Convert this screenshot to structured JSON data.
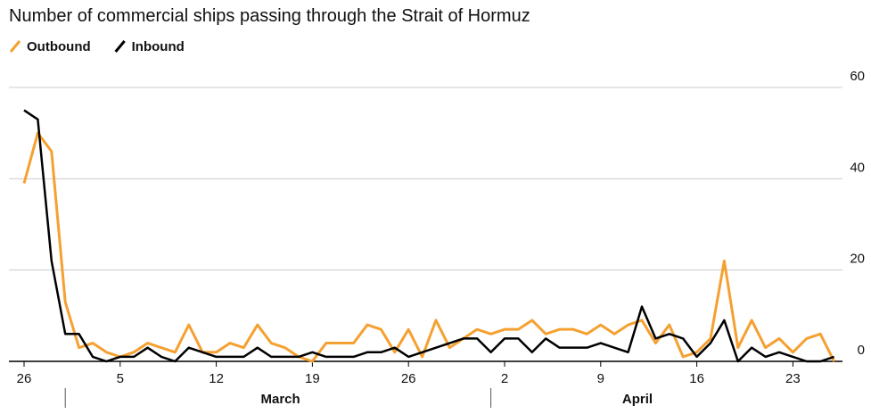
{
  "chart_data": {
    "type": "line",
    "title": "Number of commercial ships passing through the Strait of Hormuz",
    "categories": [
      "26",
      null,
      null,
      null,
      null,
      null,
      null,
      "5",
      null,
      null,
      null,
      null,
      null,
      null,
      "12",
      null,
      null,
      null,
      null,
      null,
      null,
      "19",
      null,
      null,
      null,
      null,
      null,
      null,
      "26",
      null,
      null,
      null,
      null,
      null,
      null,
      "2",
      null,
      null,
      null,
      null,
      null,
      null,
      "9",
      null,
      null,
      null,
      null,
      null,
      null,
      "16",
      null,
      null,
      null,
      null,
      null,
      null,
      "23",
      null,
      null,
      null
    ],
    "months": [
      "March",
      "April"
    ],
    "series": [
      {
        "name": "Outbound",
        "color": "#f5a031",
        "values": [
          39,
          50,
          46,
          13,
          3,
          4,
          2,
          1,
          2,
          4,
          3,
          2,
          8,
          2,
          2,
          4,
          3,
          8,
          4,
          3,
          1,
          0,
          4,
          4,
          4,
          8,
          7,
          2,
          7,
          1,
          9,
          3,
          5,
          7,
          6,
          7,
          7,
          9,
          6,
          7,
          7,
          6,
          8,
          6,
          8,
          9,
          4,
          8,
          1,
          2,
          5,
          22,
          3,
          9,
          3,
          5,
          2,
          5,
          6,
          0
        ]
      },
      {
        "name": "Inbound",
        "color": "#000000",
        "values": [
          55,
          53,
          22,
          6,
          6,
          1,
          0,
          1,
          1,
          3,
          1,
          0,
          3,
          2,
          1,
          1,
          1,
          3,
          1,
          1,
          1,
          2,
          1,
          1,
          1,
          2,
          2,
          3,
          1,
          2,
          3,
          4,
          5,
          5,
          2,
          5,
          5,
          2,
          5,
          3,
          3,
          3,
          4,
          3,
          2,
          12,
          5,
          6,
          5,
          1,
          4,
          9,
          0,
          3,
          1,
          2,
          1,
          0,
          0,
          1
        ]
      }
    ],
    "ylim": [
      0,
      60
    ],
    "yticks": [
      0,
      20,
      40,
      60
    ],
    "grid": true
  }
}
